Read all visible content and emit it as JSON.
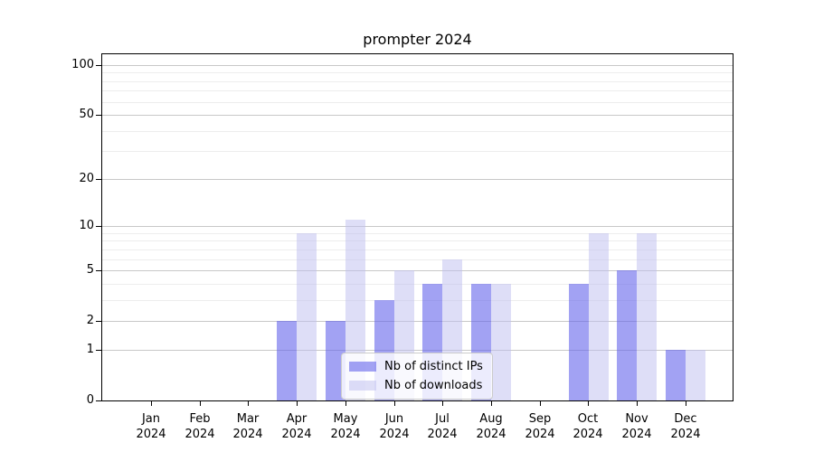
{
  "chart_data": {
    "type": "bar",
    "title": "prompter 2024",
    "categories": [
      "Jan",
      "Feb",
      "Mar",
      "Apr",
      "May",
      "Jun",
      "Jul",
      "Aug",
      "Sep",
      "Oct",
      "Nov",
      "Dec"
    ],
    "category_year": "2024",
    "series": [
      {
        "name": "Nb of distinct IPs",
        "color": "rgba(100,100,235,0.6)",
        "values": [
          0,
          0,
          0,
          2,
          2,
          3,
          4,
          4,
          0,
          4,
          5,
          1
        ]
      },
      {
        "name": "Nb of downloads",
        "color": "rgba(190,190,240,0.5)",
        "values": [
          0,
          0,
          0,
          9,
          11,
          5,
          6,
          4,
          0,
          9,
          9,
          1
        ]
      }
    ],
    "xlabel": "",
    "ylabel": "",
    "yscale": "log1p",
    "ylim": [
      0,
      100
    ],
    "y_major_ticks": [
      0,
      1,
      2,
      5,
      10,
      20,
      50,
      100
    ],
    "y_minor_ticks": [
      3,
      4,
      6,
      7,
      8,
      9,
      30,
      40,
      60,
      70,
      80,
      90
    ],
    "grid": true,
    "legend_position": "lower center"
  },
  "colors": {
    "major_grid": "#c8c8c8",
    "minor_grid": "#ededed",
    "spine": "#000000",
    "text": "#000000",
    "legend_bg": "rgba(255,255,255,0.8)",
    "legend_border": "#cccccc"
  }
}
